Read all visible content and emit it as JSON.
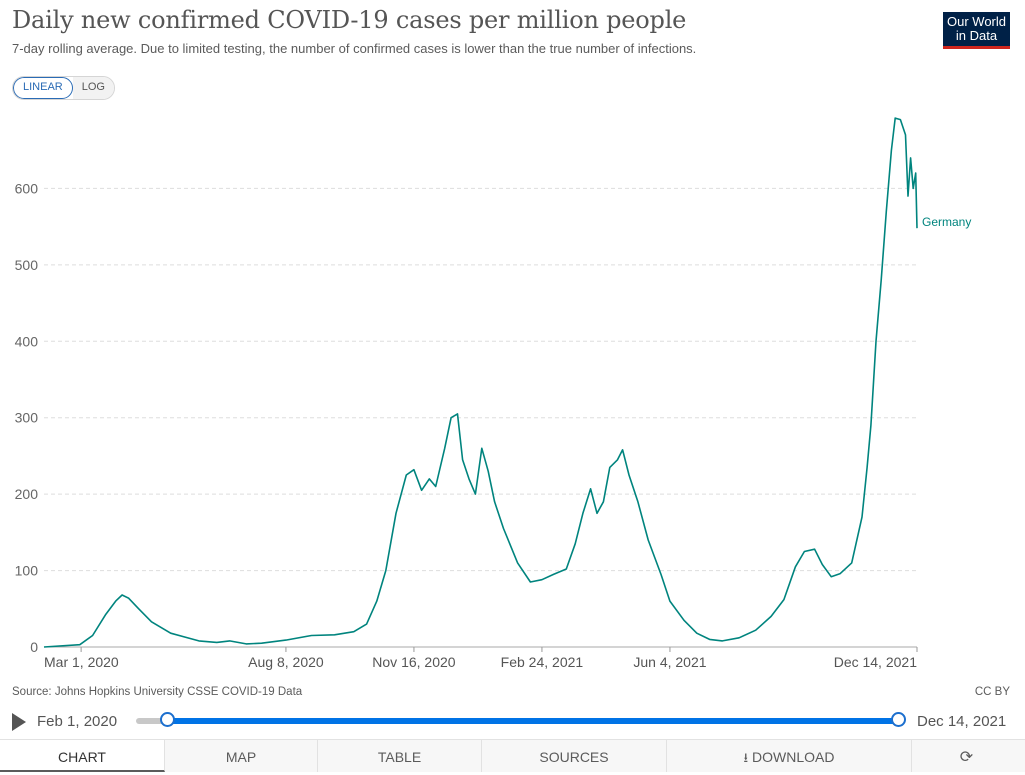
{
  "header": {
    "title": "Daily new confirmed COVID-19 cases per million people",
    "subtitle": "7-day rolling average. Due to limited testing, the number of confirmed cases is lower than the true number of infections.",
    "logo_line1": "Our World",
    "logo_line2": "in Data"
  },
  "scale_toggle": {
    "linear_label": "LINEAR",
    "log_label": "LOG",
    "selected": "LINEAR"
  },
  "chart_data": {
    "type": "line",
    "title": "Daily new confirmed COVID-19 cases per million people",
    "xlabel": "",
    "ylabel": "",
    "ylim": [
      0,
      700
    ],
    "y_ticks": [
      0,
      100,
      200,
      300,
      400,
      500,
      600
    ],
    "x_ticks": [
      "Mar 1, 2020",
      "Aug 8, 2020",
      "Nov 16, 2020",
      "Feb 24, 2021",
      "Jun 4, 2021",
      "Dec 14, 2021"
    ],
    "x_range": [
      "2020-02-01",
      "2021-12-14"
    ],
    "grid": "horizontal dashed",
    "series": [
      {
        "name": "Germany",
        "color": "#00847e",
        "points": [
          [
            "2020-02-01",
            0
          ],
          [
            "2020-02-29",
            3
          ],
          [
            "2020-03-10",
            15
          ],
          [
            "2020-03-20",
            42
          ],
          [
            "2020-03-28",
            60
          ],
          [
            "2020-04-02",
            68
          ],
          [
            "2020-04-07",
            64
          ],
          [
            "2020-04-15",
            50
          ],
          [
            "2020-04-25",
            33
          ],
          [
            "2020-05-10",
            18
          ],
          [
            "2020-06-01",
            8
          ],
          [
            "2020-06-15",
            6
          ],
          [
            "2020-06-25",
            8
          ],
          [
            "2020-07-08",
            4
          ],
          [
            "2020-07-20",
            5
          ],
          [
            "2020-08-08",
            9
          ],
          [
            "2020-08-28",
            15
          ],
          [
            "2020-09-15",
            16
          ],
          [
            "2020-09-30",
            20
          ],
          [
            "2020-10-10",
            30
          ],
          [
            "2020-10-18",
            60
          ],
          [
            "2020-10-25",
            100
          ],
          [
            "2020-11-02",
            175
          ],
          [
            "2020-11-10",
            225
          ],
          [
            "2020-11-16",
            232
          ],
          [
            "2020-11-22",
            205
          ],
          [
            "2020-11-28",
            220
          ],
          [
            "2020-12-03",
            210
          ],
          [
            "2020-12-10",
            260
          ],
          [
            "2020-12-15",
            300
          ],
          [
            "2020-12-20",
            305
          ],
          [
            "2020-12-24",
            245
          ],
          [
            "2020-12-29",
            220
          ],
          [
            "2021-01-03",
            200
          ],
          [
            "2021-01-08",
            260
          ],
          [
            "2021-01-13",
            230
          ],
          [
            "2021-01-18",
            190
          ],
          [
            "2021-01-25",
            155
          ],
          [
            "2021-02-05",
            110
          ],
          [
            "2021-02-15",
            85
          ],
          [
            "2021-02-24",
            88
          ],
          [
            "2021-03-05",
            95
          ],
          [
            "2021-03-15",
            102
          ],
          [
            "2021-03-22",
            135
          ],
          [
            "2021-03-28",
            175
          ],
          [
            "2021-04-03",
            207
          ],
          [
            "2021-04-08",
            175
          ],
          [
            "2021-04-13",
            190
          ],
          [
            "2021-04-18",
            235
          ],
          [
            "2021-04-24",
            245
          ],
          [
            "2021-04-28",
            258
          ],
          [
            "2021-05-03",
            225
          ],
          [
            "2021-05-10",
            190
          ],
          [
            "2021-05-18",
            140
          ],
          [
            "2021-05-28",
            95
          ],
          [
            "2021-06-04",
            60
          ],
          [
            "2021-06-15",
            35
          ],
          [
            "2021-06-25",
            18
          ],
          [
            "2021-07-05",
            10
          ],
          [
            "2021-07-15",
            8
          ],
          [
            "2021-07-28",
            12
          ],
          [
            "2021-08-10",
            22
          ],
          [
            "2021-08-22",
            40
          ],
          [
            "2021-09-01",
            62
          ],
          [
            "2021-09-10",
            105
          ],
          [
            "2021-09-17",
            125
          ],
          [
            "2021-09-25",
            128
          ],
          [
            "2021-10-01",
            108
          ],
          [
            "2021-10-08",
            92
          ],
          [
            "2021-10-15",
            96
          ],
          [
            "2021-10-24",
            110
          ],
          [
            "2021-11-01",
            170
          ],
          [
            "2021-11-05",
            235
          ],
          [
            "2021-11-08",
            290
          ],
          [
            "2021-11-12",
            400
          ],
          [
            "2021-11-16",
            480
          ],
          [
            "2021-11-20",
            570
          ],
          [
            "2021-11-24",
            650
          ],
          [
            "2021-11-27",
            692
          ],
          [
            "2021-12-01",
            690
          ],
          [
            "2021-12-05",
            670
          ],
          [
            "2021-12-07",
            590
          ],
          [
            "2021-12-09",
            640
          ],
          [
            "2021-12-11",
            600
          ],
          [
            "2021-12-13",
            620
          ],
          [
            "2021-12-14",
            548
          ]
        ]
      }
    ],
    "legend": "end-of-line label"
  },
  "footer": {
    "source": "Source: Johns Hopkins University CSSE COVID-19 Data",
    "license": "CC BY"
  },
  "timeline": {
    "start_label": "Feb 1, 2020",
    "end_label": "Dec 14, 2021"
  },
  "tabs": [
    {
      "label": "CHART",
      "active": true
    },
    {
      "label": "MAP"
    },
    {
      "label": "TABLE"
    },
    {
      "label": "SOURCES"
    },
    {
      "label": "DOWNLOAD",
      "icon": "download-icon"
    },
    {
      "label": "",
      "icon": "share-icon"
    }
  ]
}
